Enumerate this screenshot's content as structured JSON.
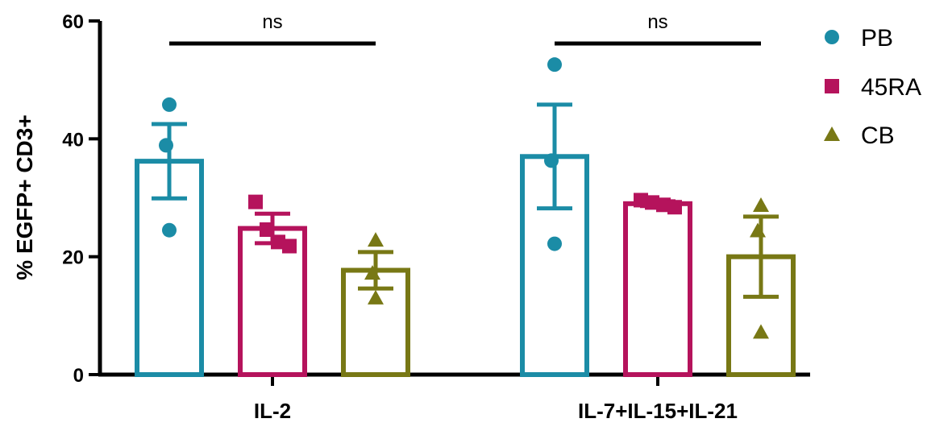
{
  "chart_data": {
    "type": "bar",
    "ylabel": "% EGFP+ CD3+",
    "ylim": [
      0,
      60
    ],
    "yticks": [
      0,
      20,
      40,
      60
    ],
    "categories": [
      "IL-2",
      "IL-7+IL-15+IL-21"
    ],
    "legend": {
      "position": "top-right"
    },
    "series": [
      {
        "name": "PB",
        "color": "#1b8ca6",
        "marker": "circle",
        "means": [
          36.2,
          37.0
        ],
        "errors": [
          6.3,
          8.8
        ],
        "points": [
          [
            45.8,
            38.9,
            24.5
          ],
          [
            52.6,
            36.3,
            22.2
          ]
        ]
      },
      {
        "name": "45RA",
        "color": "#b5135c",
        "marker": "square",
        "means": [
          24.8,
          29.0
        ],
        "errors": [
          2.5,
          0.4
        ],
        "points": [
          [
            29.3,
            24.6,
            22.5,
            21.8
          ],
          [
            29.6,
            29.2,
            28.8,
            28.4
          ]
        ]
      },
      {
        "name": "CB",
        "color": "#787815",
        "marker": "triangle",
        "means": [
          17.7,
          20.0
        ],
        "errors": [
          3.1,
          6.8
        ],
        "points": [
          [
            22.8,
            17.2,
            13.0
          ],
          [
            28.7,
            24.4,
            7.2
          ]
        ]
      }
    ],
    "annotations": [
      {
        "text": "ns",
        "category": "IL-2"
      },
      {
        "text": "ns",
        "category": "IL-7+IL-15+IL-21"
      }
    ]
  }
}
